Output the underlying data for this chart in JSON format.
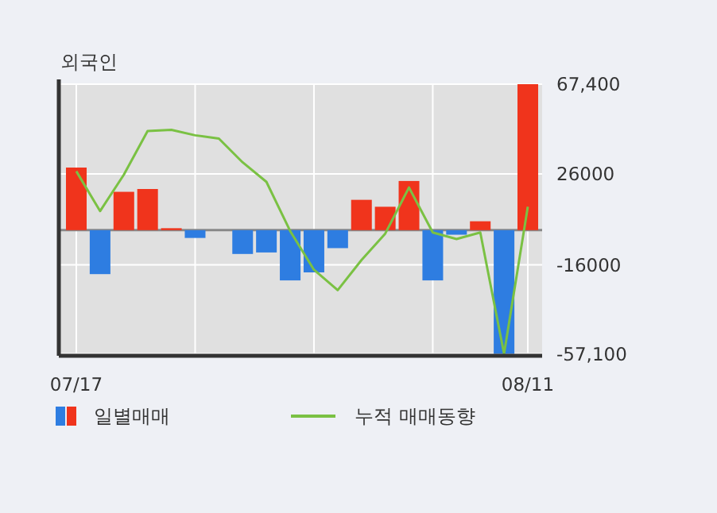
{
  "chart_data": {
    "type": "bar",
    "title": "외국인",
    "categories": [
      "07/17",
      null,
      null,
      null,
      null,
      null,
      null,
      null,
      null,
      null,
      null,
      null,
      null,
      null,
      null,
      null,
      null,
      null,
      null,
      "08/11"
    ],
    "series": [
      {
        "name": "일별매매",
        "colors": [
          "#f0341c",
          "#2e7de1",
          "#f0341c",
          "#f0341c",
          "#f0341c",
          "#2e7de1",
          "#2e7de1",
          "#2e7de1",
          "#2e7de1",
          "#2e7de1",
          "#2e7de1",
          "#2e7de1",
          "#f0341c",
          "#f0341c",
          "#f0341c",
          "#2e7de1",
          "#2e7de1",
          "#f0341c",
          "#2e7de1",
          "#f0341c"
        ],
        "values": [
          28900,
          -20300,
          17700,
          19000,
          900,
          -3600,
          0,
          -11000,
          -10300,
          -23200,
          -19500,
          -8300,
          14000,
          10800,
          22700,
          -23200,
          -2100,
          4100,
          -57100,
          67400
        ]
      },
      {
        "name": "누적 매매동향",
        "type": "line",
        "color": "#7ac143",
        "values": [
          27200,
          8800,
          25600,
          45800,
          46300,
          43800,
          42300,
          31300,
          22300,
          -400,
          -18300,
          -27700,
          -13800,
          -1600,
          19700,
          -1100,
          -4100,
          -1100,
          -57100,
          10800
        ]
      }
    ],
    "ylim": [
      -58000,
      67400
    ],
    "yticks": [
      {
        "value": 67400,
        "label": "67,400"
      },
      26000,
      -16000,
      {
        "value": -57100,
        "label": "-57,100"
      }
    ],
    "grid": true,
    "legend": "bottom",
    "marker": "none",
    "line_style": "solid"
  }
}
